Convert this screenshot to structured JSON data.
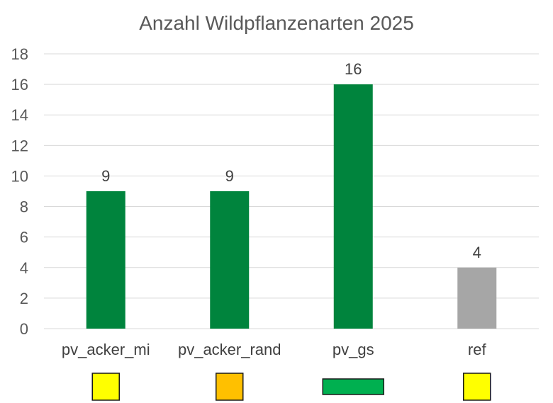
{
  "chart_data": {
    "type": "bar",
    "title": "Anzahl Wildpflanzenarten 2025",
    "categories": [
      "pv_acker_mi",
      "pv_acker_rand",
      "pv_gs",
      "ref"
    ],
    "values": [
      9,
      9,
      16,
      4
    ],
    "bar_colors": [
      "#00843d",
      "#00843d",
      "#00843d",
      "#a6a6a6"
    ],
    "legend_swatches": [
      "#ffff00",
      "#ffc000",
      "#00b050",
      "#ffff00"
    ],
    "ylim": [
      0,
      18
    ],
    "yticks": [
      "0",
      "2",
      "4",
      "6",
      "8",
      "10",
      "12",
      "14",
      "16",
      "18"
    ],
    "grid": true,
    "xlabel": "",
    "ylabel": ""
  }
}
